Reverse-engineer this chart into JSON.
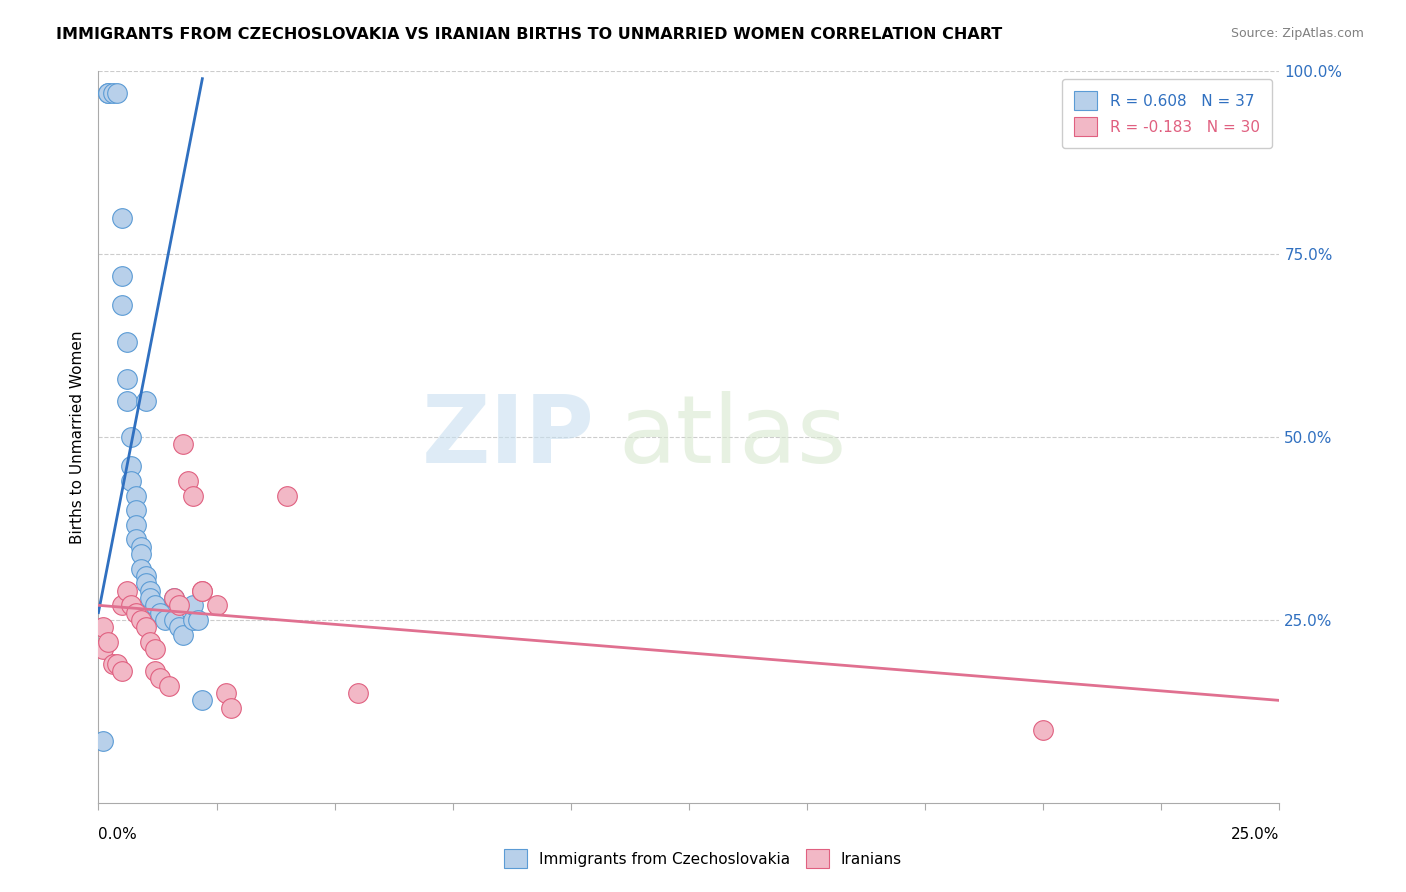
{
  "title": "IMMIGRANTS FROM CZECHOSLOVAKIA VS IRANIAN BIRTHS TO UNMARRIED WOMEN CORRELATION CHART",
  "source": "Source: ZipAtlas.com",
  "ylabel": "Births to Unmarried Women",
  "ylabel_right_ticks": [
    "100.0%",
    "75.0%",
    "50.0%",
    "25.0%"
  ],
  "ylabel_right_vals": [
    1.0,
    0.75,
    0.5,
    0.25
  ],
  "legend_r1": "R = 0.608",
  "legend_n1": "N = 37",
  "legend_r2": "R = -0.183",
  "legend_n2": "N = 30",
  "blue_color": "#b8d0ea",
  "blue_edge_color": "#5b9bd5",
  "pink_color": "#f2b8c6",
  "pink_edge_color": "#e06080",
  "blue_line_color": "#3070c0",
  "pink_line_color": "#e07090",
  "watermark_zip": "ZIP",
  "watermark_atlas": "atlas",
  "xmin": 0.0,
  "xmax": 0.25,
  "ymin": 0.0,
  "ymax": 1.0,
  "blue_dots_x": [
    0.001,
    0.002,
    0.002,
    0.003,
    0.004,
    0.005,
    0.005,
    0.005,
    0.006,
    0.006,
    0.006,
    0.007,
    0.007,
    0.007,
    0.008,
    0.008,
    0.008,
    0.008,
    0.009,
    0.009,
    0.009,
    0.01,
    0.01,
    0.01,
    0.011,
    0.011,
    0.012,
    0.013,
    0.014,
    0.016,
    0.016,
    0.017,
    0.018,
    0.02,
    0.02,
    0.021,
    0.022
  ],
  "blue_dots_y": [
    0.085,
    0.97,
    0.97,
    0.97,
    0.97,
    0.8,
    0.72,
    0.68,
    0.63,
    0.58,
    0.55,
    0.5,
    0.46,
    0.44,
    0.42,
    0.4,
    0.38,
    0.36,
    0.35,
    0.34,
    0.32,
    0.31,
    0.3,
    0.55,
    0.29,
    0.28,
    0.27,
    0.26,
    0.25,
    0.28,
    0.25,
    0.24,
    0.23,
    0.25,
    0.27,
    0.25,
    0.14
  ],
  "pink_dots_x": [
    0.001,
    0.001,
    0.002,
    0.003,
    0.004,
    0.005,
    0.005,
    0.006,
    0.007,
    0.008,
    0.009,
    0.01,
    0.011,
    0.012,
    0.012,
    0.013,
    0.015,
    0.016,
    0.017,
    0.018,
    0.019,
    0.02,
    0.022,
    0.022,
    0.025,
    0.027,
    0.028,
    0.04,
    0.055,
    0.2
  ],
  "pink_dots_y": [
    0.21,
    0.24,
    0.22,
    0.19,
    0.19,
    0.18,
    0.27,
    0.29,
    0.27,
    0.26,
    0.25,
    0.24,
    0.22,
    0.21,
    0.18,
    0.17,
    0.16,
    0.28,
    0.27,
    0.49,
    0.44,
    0.42,
    0.29,
    0.29,
    0.27,
    0.15,
    0.13,
    0.42,
    0.15,
    0.1
  ],
  "blue_trendline_x": [
    0.0,
    0.022
  ],
  "blue_trendline_y": [
    0.26,
    0.99
  ],
  "pink_trendline_x": [
    0.0,
    0.25
  ],
  "pink_trendline_y": [
    0.27,
    0.14
  ]
}
